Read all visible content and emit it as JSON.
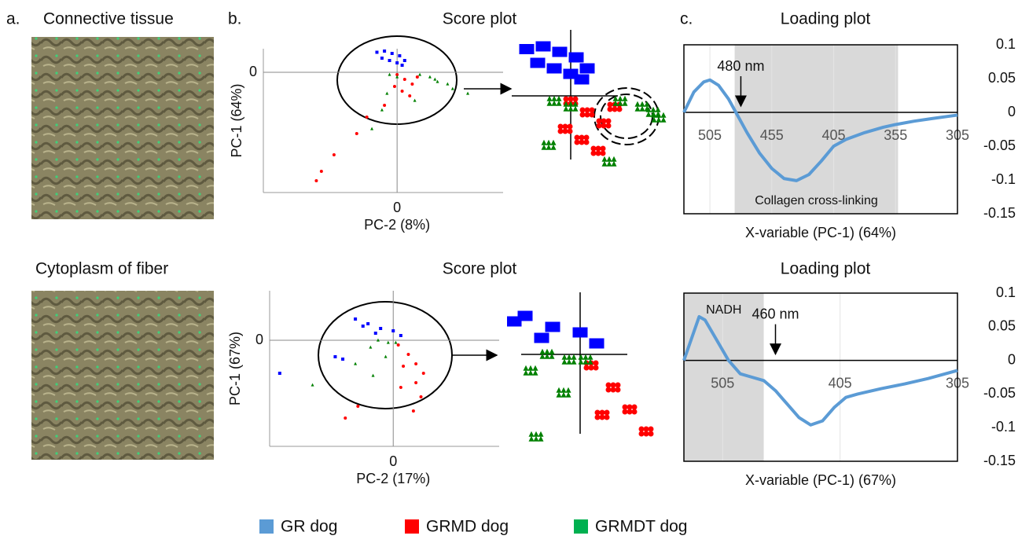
{
  "panel_labels": [
    "a.",
    "b.",
    "c."
  ],
  "images": [
    {
      "caption": "Connective tissue"
    },
    {
      "caption": "Cytoplasm of fiber"
    }
  ],
  "chart_data": [
    {
      "type": "scatter",
      "title": "Score plot",
      "xlabel": "PC-2 (8%)",
      "ylabel": "PC-1 (64%)",
      "xlim": [
        -5.3,
        4.2
      ],
      "ylim": [
        -5.1,
        1
      ],
      "xticks": [
        0
      ],
      "yticks": [
        0
      ],
      "legend_colors": [
        "#5b9bd5",
        "#ff0000",
        "#00b050"
      ],
      "series": [
        {
          "name": "GR dog",
          "color": "#0000ff",
          "marker": "square",
          "x": [
            -0.8,
            -0.5,
            -0.2,
            0.1,
            0.3,
            -0.6,
            -0.3,
            0,
            0.2
          ],
          "values": [
            0.85,
            0.9,
            0.8,
            0.7,
            0.5,
            0.6,
            0.5,
            0.4,
            0.3
          ]
        },
        {
          "name": "GRMD dog",
          "color": "#ff0000",
          "marker": "circle",
          "x": [
            0,
            0.3,
            0.6,
            0.2,
            0.8,
            -0.1,
            0.5,
            -0.5,
            -1.2,
            -1.6,
            -2.5,
            -3.0,
            -3.2
          ],
          "values": [
            -0.1,
            -0.3,
            -0.5,
            -0.8,
            -0.2,
            -0.6,
            -1.0,
            -1.4,
            -1.9,
            -2.6,
            -3.5,
            -4.2,
            -4.6
          ]
        },
        {
          "name": "GRMDT dog",
          "color": "#008000",
          "marker": "triangle",
          "x": [
            0.9,
            1.3,
            1.6,
            2,
            2.2,
            1.5,
            -0.3,
            0,
            -0.4,
            -0.6,
            -1,
            0.7,
            2.8
          ],
          "values": [
            -0.1,
            -0.2,
            -0.4,
            -0.5,
            -0.7,
            -0.3,
            -0.1,
            -0.2,
            -0.9,
            -1.6,
            -2.4,
            -1.2,
            -0.9
          ]
        }
      ]
    },
    {
      "type": "line",
      "title": "Loading plot",
      "xlabel": "X-variable (PC-1) (64%)",
      "xlim": [
        526,
        305
      ],
      "ylim": [
        -0.15,
        0.1
      ],
      "xticks": [
        505,
        455,
        405,
        355,
        305
      ],
      "yticks": [
        0.1,
        0.05,
        0,
        -0.05,
        -0.1,
        -0.15
      ],
      "shaded": {
        "range": [
          485,
          353
        ],
        "label": "Collagen cross-linking"
      },
      "annotation": {
        "x": 480,
        "text": "480 nm"
      },
      "series": [
        {
          "color": "#5b9bd5",
          "x": [
            526,
            518,
            510,
            505,
            498,
            490,
            484,
            475,
            465,
            455,
            445,
            435,
            425,
            415,
            405,
            395,
            380,
            365,
            355,
            340,
            325,
            305
          ],
          "values": [
            0,
            0.03,
            0.045,
            0.048,
            0.04,
            0.02,
            0,
            -0.03,
            -0.06,
            -0.083,
            -0.098,
            -0.101,
            -0.092,
            -0.072,
            -0.05,
            -0.04,
            -0.03,
            -0.022,
            -0.018,
            -0.013,
            -0.009,
            -0.004
          ]
        }
      ]
    },
    {
      "type": "scatter",
      "title": "Score plot",
      "xlabel": "PC-2 (17%)",
      "ylabel": "PC-1 (67%)",
      "xlim": [
        -4.9,
        4.2
      ],
      "ylim": [
        -4.5,
        2.1
      ],
      "xticks": [
        0
      ],
      "yticks": [
        0
      ],
      "series": [
        {
          "name": "GR dog",
          "color": "#0000ff",
          "marker": "square",
          "x": [
            -1.5,
            -1,
            -0.5,
            0,
            0.3,
            -0.7,
            -1.2,
            -4.5,
            -2.3,
            -2
          ],
          "values": [
            0.9,
            0.7,
            0.5,
            0.4,
            0.2,
            0.3,
            0.6,
            -1.4,
            -0.7,
            -0.8
          ]
        },
        {
          "name": "GRMD dog",
          "color": "#ff0000",
          "marker": "circle",
          "x": [
            0.2,
            0.6,
            0.9,
            1.2,
            0.4,
            0.9,
            1.1,
            0.3,
            -1.4,
            -1.9,
            0.8
          ],
          "values": [
            -0.2,
            -0.6,
            -1,
            -1.4,
            -1.1,
            -1.8,
            -2.4,
            -2,
            -2.8,
            -3.3,
            -3.0
          ]
        },
        {
          "name": "GRMDT dog",
          "color": "#008000",
          "marker": "triangle",
          "x": [
            -0.6,
            -0.2,
            0.1,
            -0.9,
            -1.5,
            -0.8,
            -3.2,
            -0.3
          ],
          "values": [
            0,
            -0.1,
            -0.1,
            -0.3,
            -1.0,
            -1.5,
            -1.9,
            -0.7
          ]
        }
      ]
    },
    {
      "type": "line",
      "title": "Loading plot",
      "xlabel": "X-variable (PC-1) (67%)",
      "xlim": [
        538,
        305
      ],
      "ylim": [
        -0.15,
        0.1
      ],
      "xticks": [
        505,
        405,
        305
      ],
      "yticks": [
        0.1,
        0.05,
        0,
        -0.05,
        -0.1,
        -0.15
      ],
      "shaded": {
        "range": [
          538,
          470
        ],
        "label": "NADH"
      },
      "annotation": {
        "x": 460,
        "text": "460 nm"
      },
      "series": [
        {
          "color": "#5b9bd5",
          "x": [
            538,
            530,
            525,
            520,
            510,
            500,
            490,
            480,
            470,
            460,
            450,
            440,
            430,
            420,
            410,
            400,
            390,
            370,
            350,
            330,
            305
          ],
          "values": [
            0,
            0.04,
            0.065,
            0.06,
            0.03,
            0,
            -0.02,
            -0.025,
            -0.03,
            -0.045,
            -0.065,
            -0.085,
            -0.096,
            -0.09,
            -0.07,
            -0.055,
            -0.05,
            -0.042,
            -0.035,
            -0.027,
            -0.015
          ]
        }
      ]
    }
  ]
}
